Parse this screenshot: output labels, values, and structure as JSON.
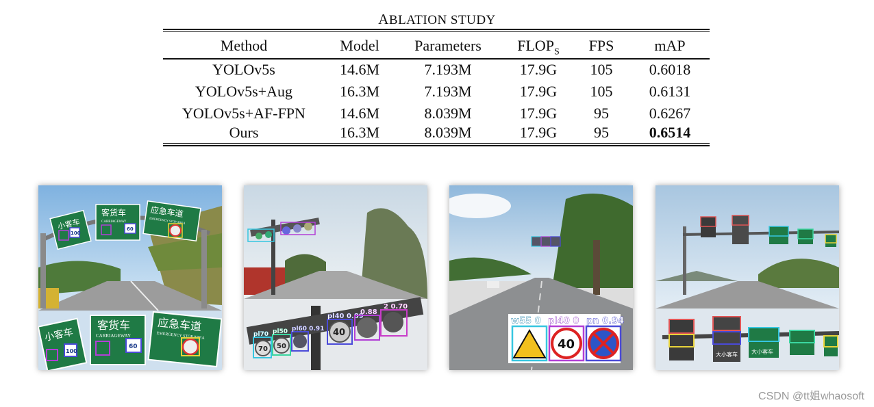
{
  "table": {
    "caption_first": "A",
    "caption_rest": "BLATION STUDY",
    "headers": [
      "Method",
      "Model",
      "Parameters",
      "FLOP",
      "FPS",
      "mAP"
    ],
    "flops_sub": "S",
    "rows": [
      [
        "YOLOv5s",
        "14.6M",
        "7.193M",
        "17.9G",
        "105",
        "0.6018"
      ],
      [
        "YOLOv5s+Aug",
        "16.3M",
        "7.193M",
        "17.9G",
        "105",
        "0.6131"
      ],
      [
        "YOLOv5s+AF-FPN",
        "14.6M",
        "8.039M",
        "17.9G",
        "95",
        "0.6267"
      ],
      [
        "Ours",
        "16.3M",
        "8.039M",
        "17.9G",
        "95",
        "0.6514"
      ]
    ]
  },
  "panels": {
    "p1": {
      "signs_top": [
        "小客车",
        "客货车",
        "应急车道"
      ],
      "sub_top": [
        "CARRIAGEWAY",
        "EMERGENCY STOP AREA"
      ],
      "signs_bottom": [
        "小客车",
        "客货车",
        "应急车道"
      ],
      "sub_bottom": [
        "CARRIAGEWAY",
        "EMERGENCY STOP AREA"
      ],
      "speed": [
        "100",
        "60",
        "100",
        "60"
      ]
    },
    "p2": {
      "labels": [
        "pl70",
        "pl50",
        "pl60 0.91",
        "pl40 0.89",
        "0.88",
        "2 0.70"
      ],
      "speed": [
        "70",
        "50",
        "40"
      ]
    },
    "p3": {
      "labels": [
        "w55 0",
        "pl40 0",
        "pn 0.94"
      ],
      "speed": [
        "40"
      ]
    },
    "p4": {
      "signs": [
        "大小客车",
        "大小客车"
      ]
    }
  },
  "watermark": "CSDN @tt姐whaosoft",
  "colors": {
    "sign_green": "#1f7a45",
    "box_purple": "#b23fd6",
    "box_cyan": "#36c6e0",
    "box_blue": "#4a4ad8"
  }
}
